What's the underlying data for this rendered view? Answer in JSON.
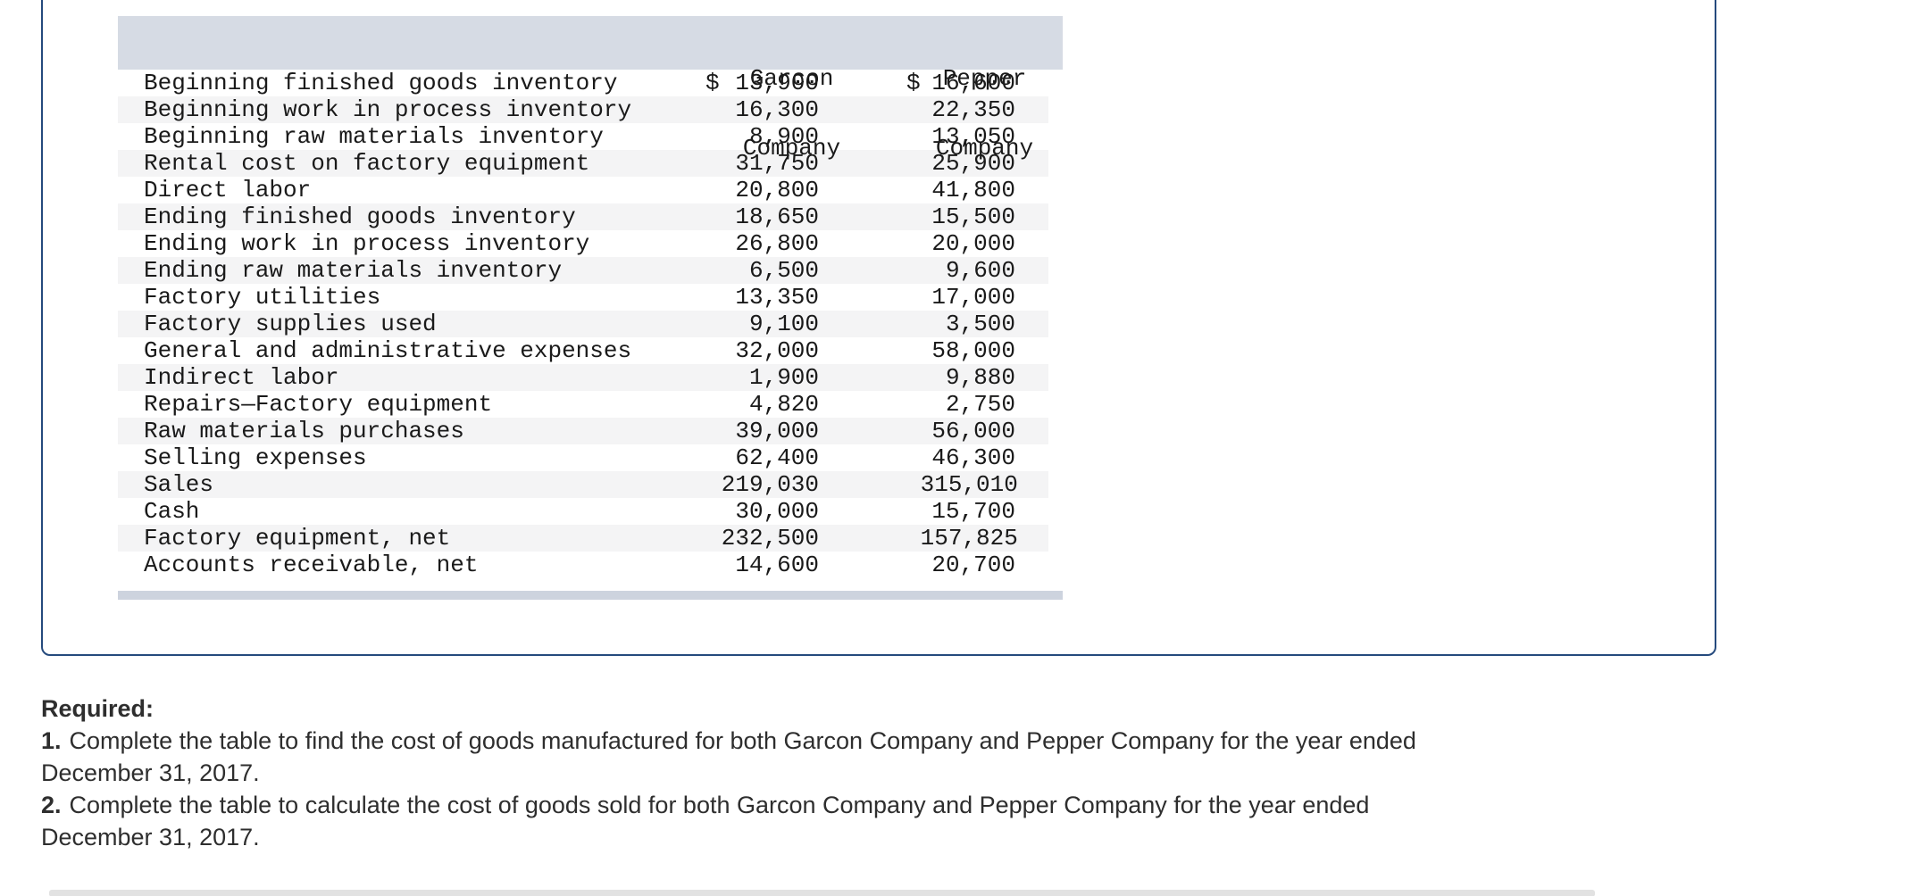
{
  "table": {
    "currency_symbol": "$",
    "header": {
      "garcon": {
        "line1": "Garcon",
        "line2": "Company"
      },
      "pepper": {
        "line1": "Pepper",
        "line2": "Company"
      }
    },
    "rows": [
      {
        "label": "Beginning finished goods inventory",
        "garcon": "13,900",
        "pepper": "16,600",
        "show_dollar": true
      },
      {
        "label": "Beginning work in process inventory",
        "garcon": "16,300",
        "pepper": "22,350",
        "show_dollar": false
      },
      {
        "label": "Beginning raw materials inventory",
        "garcon": "8,900",
        "pepper": "13,050",
        "show_dollar": false
      },
      {
        "label": "Rental cost on factory equipment",
        "garcon": "31,750",
        "pepper": "25,900",
        "show_dollar": false
      },
      {
        "label": "Direct labor",
        "garcon": "20,800",
        "pepper": "41,800",
        "show_dollar": false
      },
      {
        "label": "Ending finished goods inventory",
        "garcon": "18,650",
        "pepper": "15,500",
        "show_dollar": false
      },
      {
        "label": "Ending work in process inventory",
        "garcon": "26,800",
        "pepper": "20,000",
        "show_dollar": false
      },
      {
        "label": "Ending raw materials inventory",
        "garcon": "6,500",
        "pepper": "9,600",
        "show_dollar": false
      },
      {
        "label": "Factory utilities",
        "garcon": "13,350",
        "pepper": "17,000",
        "show_dollar": false
      },
      {
        "label": "Factory supplies used",
        "garcon": "9,100",
        "pepper": "3,500",
        "show_dollar": false
      },
      {
        "label": "General and administrative expenses",
        "garcon": "32,000",
        "pepper": "58,000",
        "show_dollar": false
      },
      {
        "label": "Indirect labor",
        "garcon": "1,900",
        "pepper": "9,880",
        "show_dollar": false
      },
      {
        "label": "Repairs—Factory equipment",
        "garcon": "4,820",
        "pepper": "2,750",
        "show_dollar": false
      },
      {
        "label": "Raw materials purchases",
        "garcon": "39,000",
        "pepper": "56,000",
        "show_dollar": false
      },
      {
        "label": "Selling expenses",
        "garcon": "62,400",
        "pepper": "46,300",
        "show_dollar": false
      },
      {
        "label": "Sales",
        "garcon": "219,030",
        "pepper": "315,010",
        "show_dollar": false
      },
      {
        "label": "Cash",
        "garcon": "30,000",
        "pepper": "15,700",
        "show_dollar": false
      },
      {
        "label": "Factory equipment, net",
        "garcon": "232,500",
        "pepper": "157,825",
        "show_dollar": false
      },
      {
        "label": "Accounts receivable, net",
        "garcon": "14,600",
        "pepper": "20,700",
        "show_dollar": false
      }
    ]
  },
  "required": {
    "heading": "Required:",
    "items": [
      {
        "number": "1.",
        "line1": "Complete the table to find the cost of goods manufactured for both Garcon Company and Pepper Company for the year ended",
        "line2": "December 31, 2017."
      },
      {
        "number": "2.",
        "line1": "Complete the table to calculate the cost of goods sold for both Garcon Company and Pepper Company for the year ended",
        "line2": "December 31, 2017."
      }
    ]
  },
  "colors": {
    "panel_border": "#254a7d",
    "table_header_bg": "#d6dbe4",
    "table_footer_bar_bg": "#cdd3de",
    "row_stripe_bg": "#f4f4f5",
    "divider_bg": "#e2e2e2"
  }
}
